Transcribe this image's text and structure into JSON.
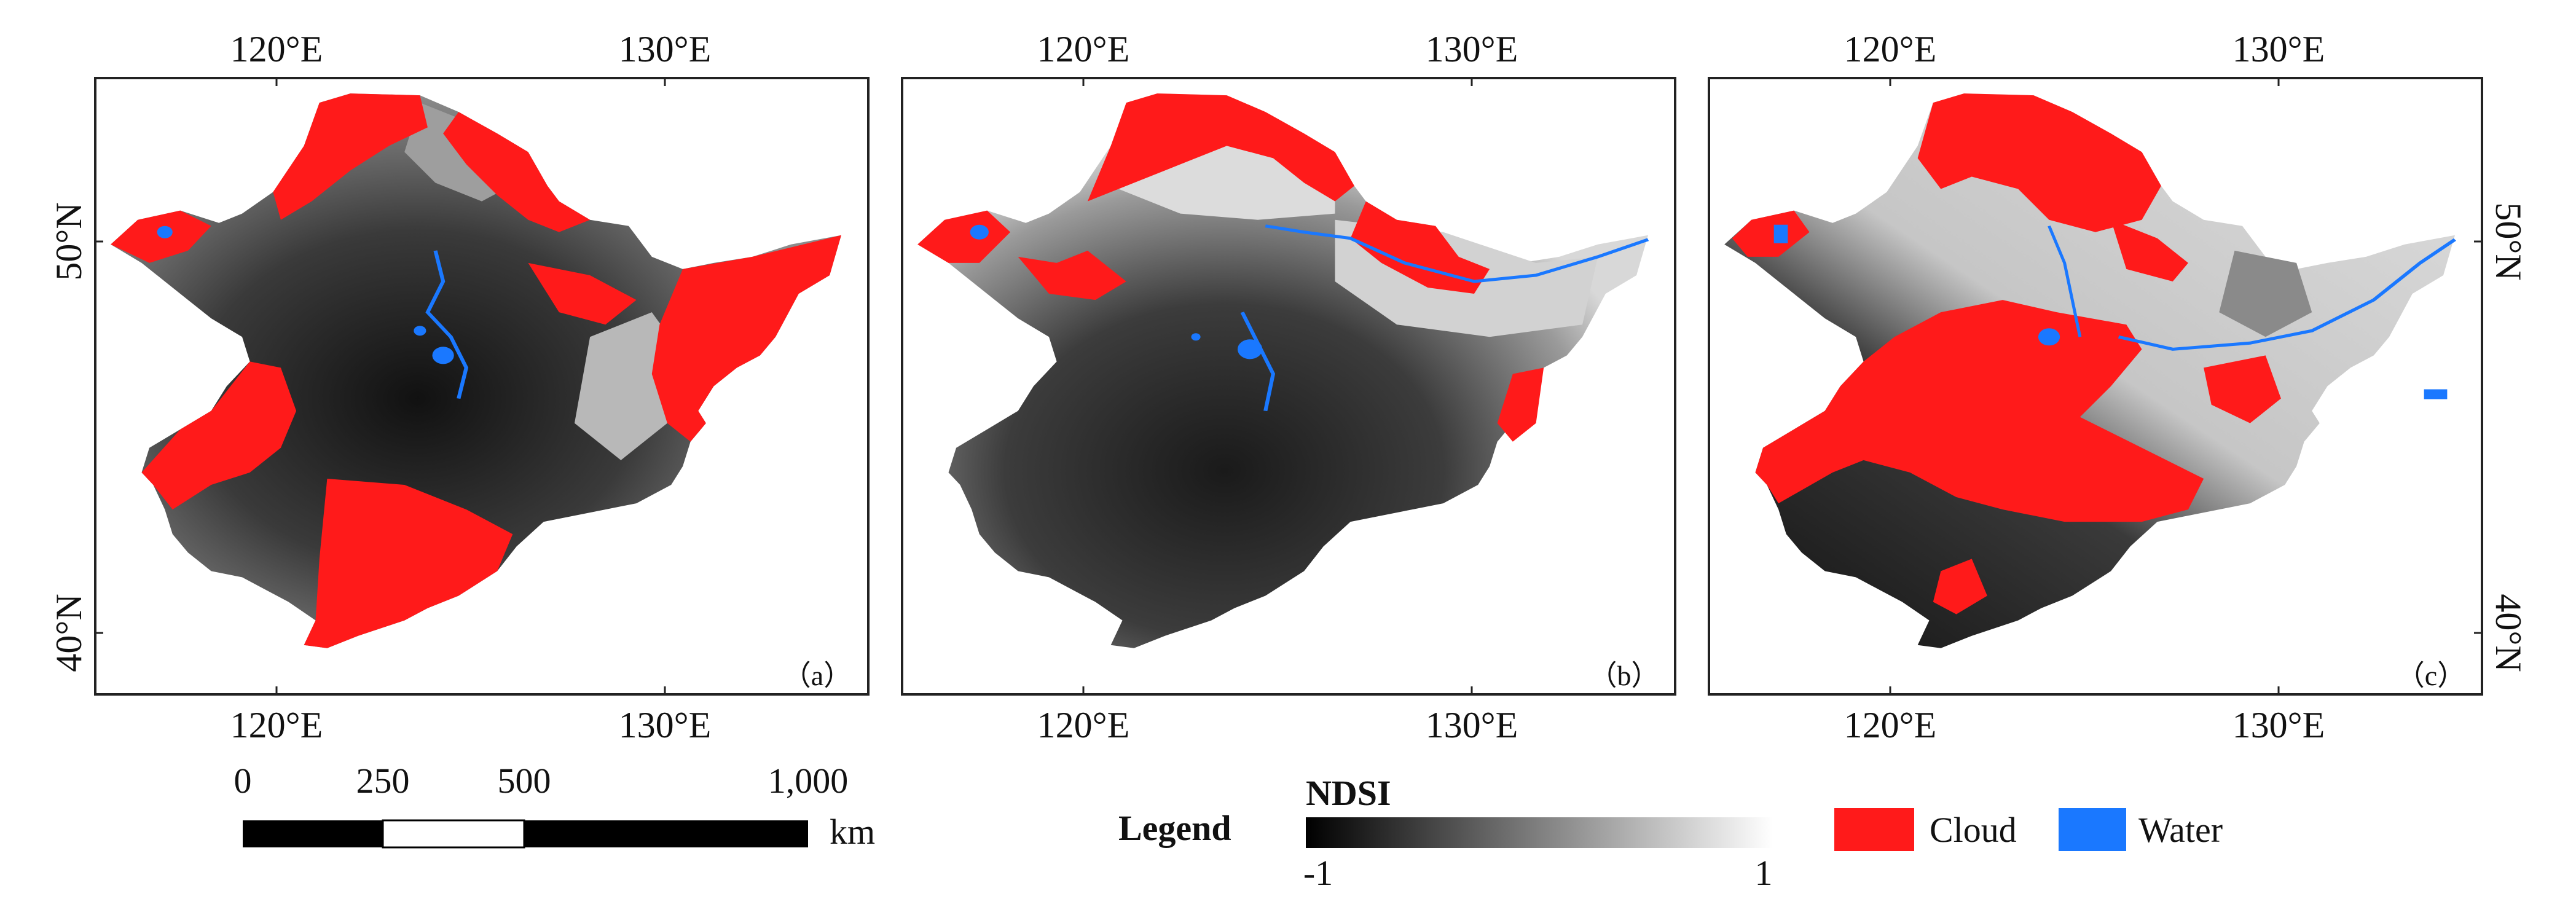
{
  "colors": {
    "cloud": "#ff1a1a",
    "water": "#1a78ff",
    "ndsi_low": "#000000",
    "ndsi_high": "#ffffff",
    "frame": "#222222"
  },
  "panels": [
    {
      "label": "（a）",
      "top_ticks": [
        "120°E",
        "130°E"
      ],
      "bottom_ticks": [
        "120°E",
        "130°E"
      ],
      "left_ticks": [
        "50°N",
        "40°N"
      ],
      "right_ticks": []
    },
    {
      "label": "（b）",
      "top_ticks": [
        "120°E",
        "130°E"
      ],
      "bottom_ticks": [
        "120°E",
        "130°E"
      ],
      "left_ticks": [],
      "right_ticks": []
    },
    {
      "label": "（c）",
      "top_ticks": [
        "120°E",
        "130°E"
      ],
      "bottom_ticks": [
        "120°E",
        "130°E"
      ],
      "left_ticks": [],
      "right_ticks": [
        "50°N",
        "40°N"
      ]
    }
  ],
  "scale_bar": {
    "labels": [
      "0",
      "250",
      "500",
      "1,000"
    ],
    "unit": "km"
  },
  "legend": {
    "title": "Legend",
    "ndsi_title": "NDSI",
    "ndsi_min": "-1",
    "ndsi_max": "1",
    "cloud_label": "Cloud",
    "water_label": "Water"
  }
}
